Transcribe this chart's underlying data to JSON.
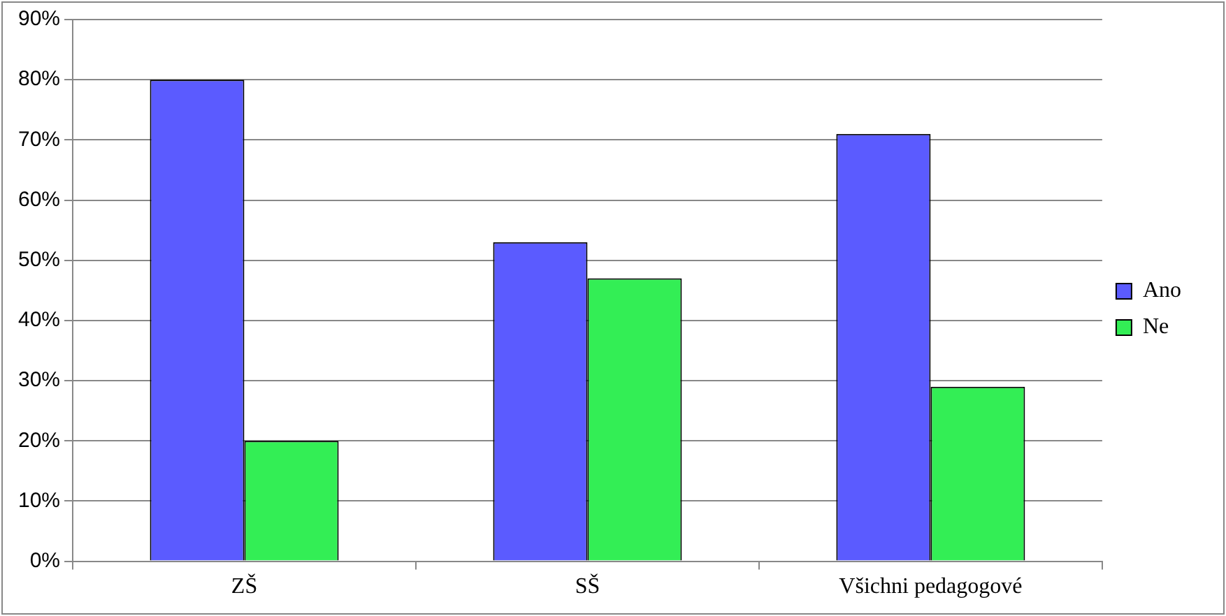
{
  "chart_data": {
    "type": "bar",
    "categories": [
      "ZŠ",
      "SŠ",
      "Všichni pedagogové"
    ],
    "series": [
      {
        "name": "Ano",
        "color": "#5b5bff",
        "values": [
          80,
          53,
          71
        ]
      },
      {
        "name": "Ne",
        "color": "#33ee55",
        "values": [
          20,
          47,
          29
        ]
      }
    ],
    "ylim": [
      0,
      90
    ],
    "yticks": [
      {
        "value": 0,
        "label": "0%"
      },
      {
        "value": 10,
        "label": "10%"
      },
      {
        "value": 20,
        "label": "20%"
      },
      {
        "value": 30,
        "label": "30%"
      },
      {
        "value": 40,
        "label": "40%"
      },
      {
        "value": 50,
        "label": "50%"
      },
      {
        "value": 60,
        "label": "60%"
      },
      {
        "value": 70,
        "label": "70%"
      },
      {
        "value": 80,
        "label": "80%"
      },
      {
        "value": 90,
        "label": "90%"
      }
    ],
    "grid": "y",
    "legend": "right"
  }
}
